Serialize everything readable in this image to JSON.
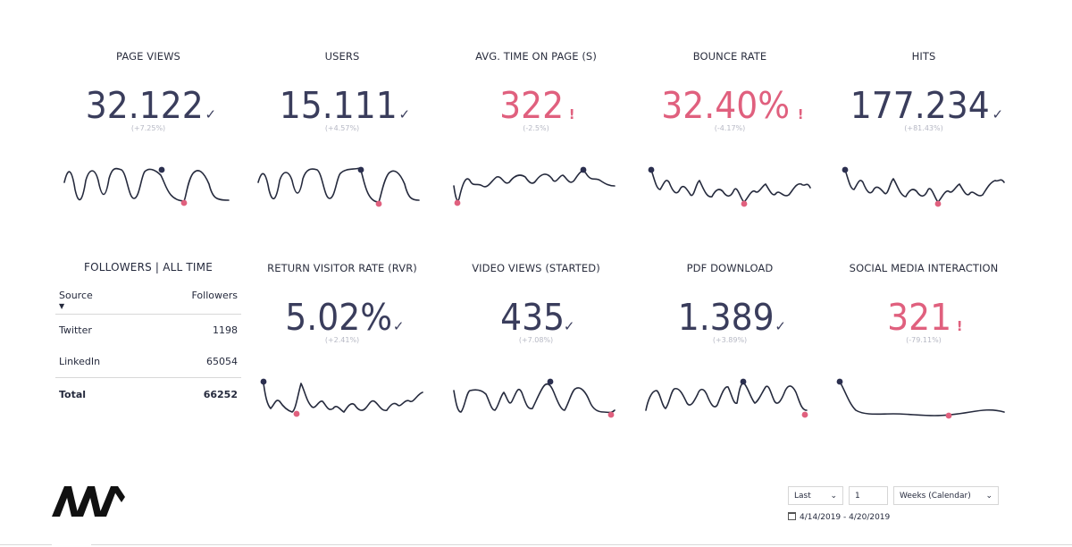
{
  "kpis": [
    {
      "title": "PAGE VIEWS",
      "value": "32.122",
      "indicator": "✓",
      "status": "good",
      "delta": "(+7.25%)"
    },
    {
      "title": "USERS",
      "value": "15.111",
      "indicator": "✓",
      "status": "good",
      "delta": "(+4.57%)"
    },
    {
      "title": "AVG. TIME ON PAGE (S)",
      "value": "322",
      "indicator": "!",
      "status": "bad",
      "delta": "(-2.5%)"
    },
    {
      "title": "BOUNCE RATE",
      "value": "32.40%",
      "indicator": "!",
      "status": "bad",
      "delta": "(-4.17%)"
    },
    {
      "title": "HITS",
      "value": "177.234",
      "indicator": "✓",
      "status": "good",
      "delta": "(+81.43%)"
    },
    {
      "title": "RETURN VISITOR RATE (RVR)",
      "value": "5.02%",
      "indicator": "✓",
      "status": "good",
      "delta": "(+2.41%)"
    },
    {
      "title": "VIDEO VIEWS (STARTED)",
      "value": "435",
      "indicator": "✓",
      "status": "good",
      "delta": "(+7.08%)"
    },
    {
      "title": "PDF DOWNLOAD",
      "value": "1.389",
      "indicator": "✓",
      "status": "good",
      "delta": "(+3.89%)"
    },
    {
      "title": "SOCIAL MEDIA INTERACTION",
      "value": "321",
      "indicator": "!",
      "status": "bad",
      "delta": "(-79.11%)"
    }
  ],
  "followers": {
    "title": "FOLLOWERS | ALL TIME",
    "col_source": "Source",
    "col_followers": "Followers",
    "rows": [
      {
        "source": "Twitter",
        "followers": "1198"
      },
      {
        "source": "LinkedIn",
        "followers": "65054"
      }
    ],
    "total_label": "Total",
    "total_value": "66252"
  },
  "controls": {
    "period_select": "Last",
    "period_count": "1",
    "period_unit": "Weeks (Calendar)",
    "date_range": "4/14/2019 - 4/20/2019"
  },
  "colors": {
    "good": "#3a3d5c",
    "bad": "#e0607e",
    "line": "#252a3d",
    "high_marker": "#2b2f4f",
    "low_marker": "#e0607e"
  }
}
